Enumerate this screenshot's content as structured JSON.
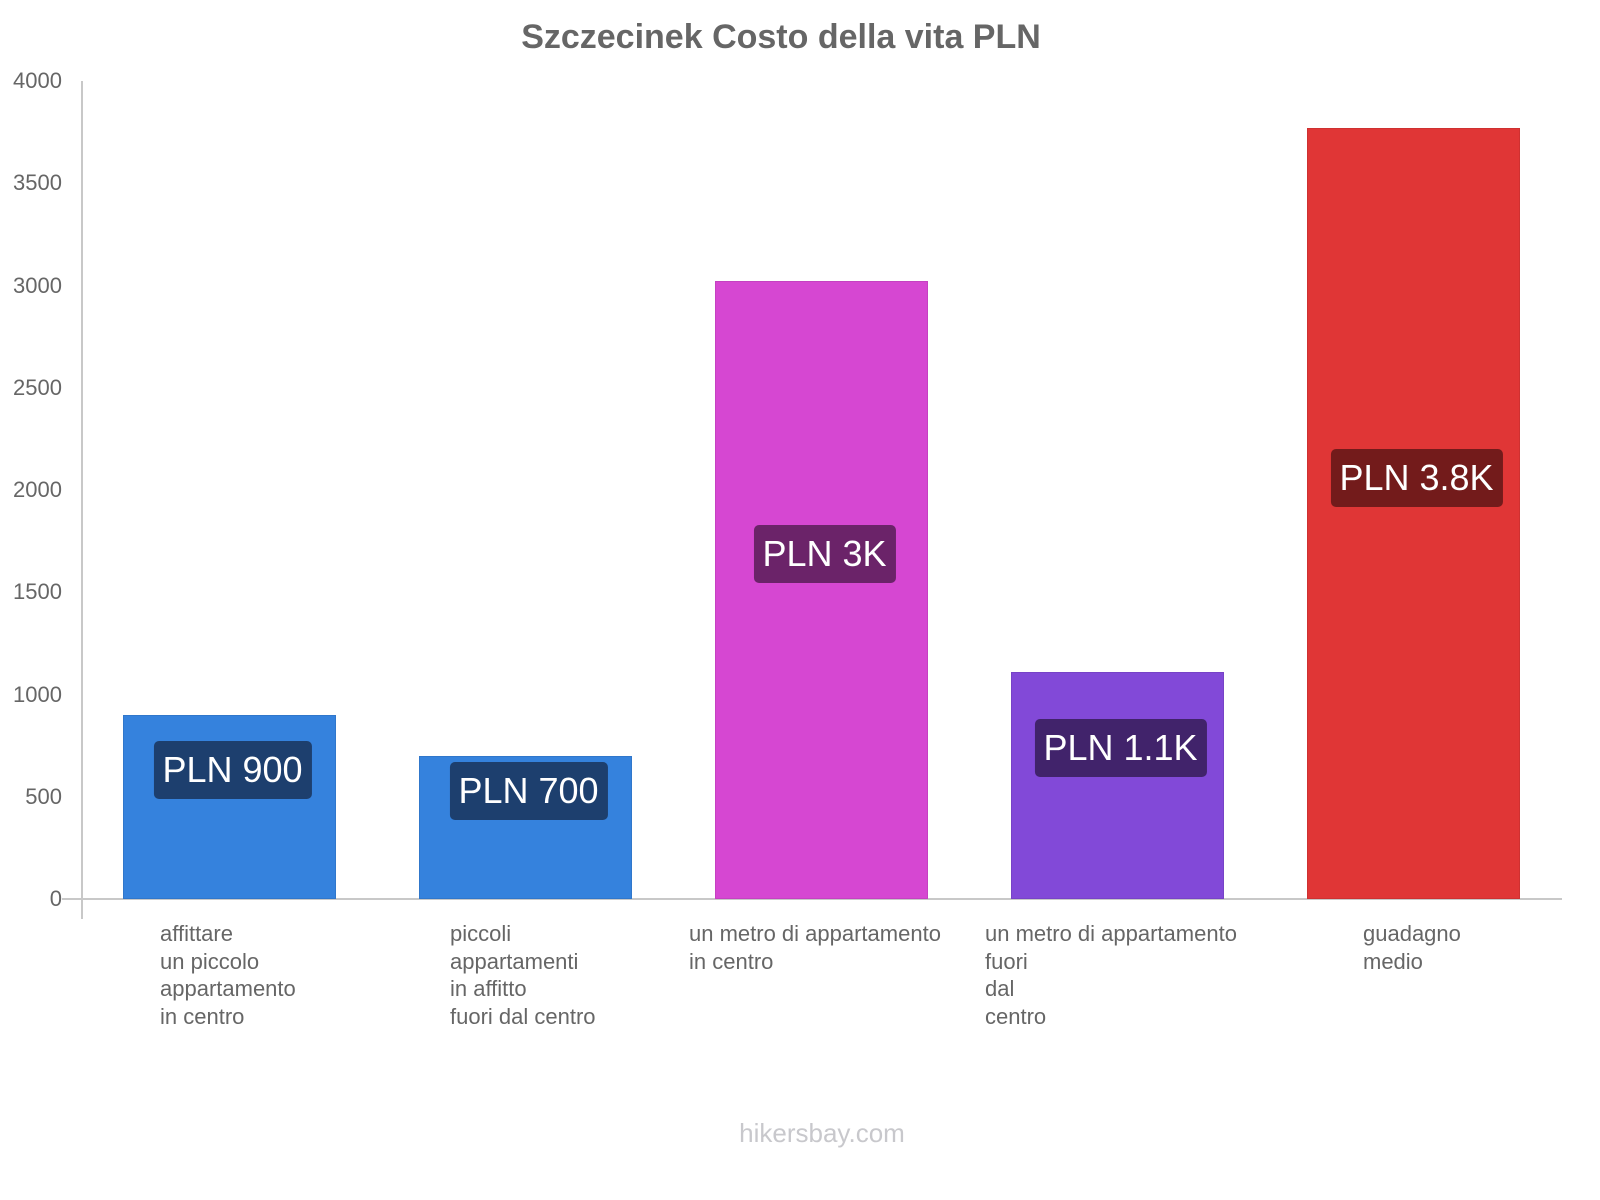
{
  "chart_data": {
    "type": "bar",
    "title": "Szczecinek Costo della vita PLN",
    "xlabel": "",
    "ylabel": "",
    "ylim": [
      0,
      4000
    ],
    "yticks": [
      0,
      500,
      1000,
      1500,
      2000,
      2500,
      3000,
      3500,
      4000
    ],
    "grid": false,
    "legend": null,
    "categories": [
      "affittare un piccolo appartamento in centro",
      "piccoli appartamenti in affitto fuori dal centro",
      "un metro di appartamento in centro",
      "un metro di appartamento fuori dal centro",
      "guadagno medio"
    ],
    "values": [
      900,
      700,
      3020,
      1110,
      3770
    ],
    "value_labels": [
      "PLN 900",
      "PLN 700",
      "PLN 3K",
      "PLN 1.1K",
      "PLN 3.8K"
    ],
    "colors": [
      "#3582dd",
      "#3582dd",
      "#d647d2",
      "#8249d8",
      "#e03636"
    ],
    "label_bg_colors": [
      "#1d3f6e",
      "#1d3f6e",
      "#6b2369",
      "#41236b",
      "#731b1b"
    ]
  },
  "ui": {
    "title": "Szczecinek Costo della vita PLN",
    "ytick_labels": [
      "0",
      "500",
      "1000",
      "1500",
      "2000",
      "2500",
      "3000",
      "3500",
      "4000"
    ],
    "xlabels": [
      "affittare\nun piccolo\nappartamento\nin centro",
      "piccoli\nappartamenti\nin affitto\nfuori dal centro",
      "un metro di appartamento\nin centro",
      "un metro di appartamento\nfuori\ndal\ncentro",
      "guadagno\nmedio"
    ],
    "footer": "hikersbay.com"
  }
}
